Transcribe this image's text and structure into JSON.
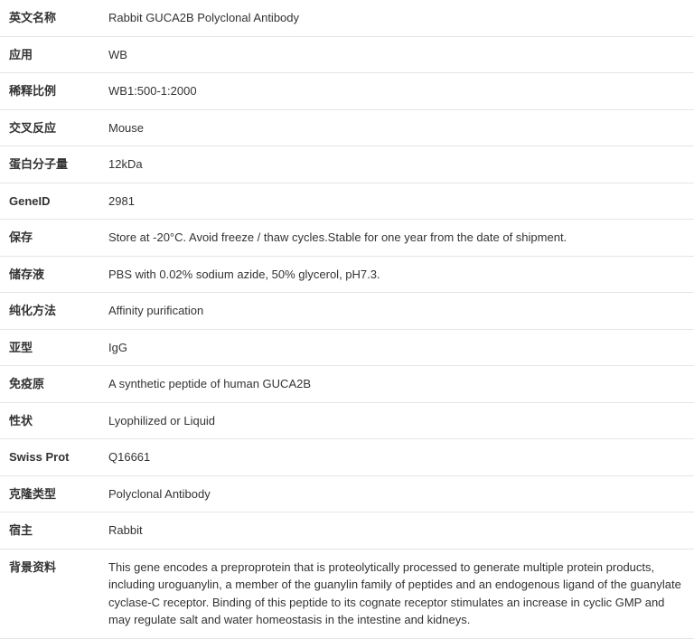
{
  "table": {
    "border_color": "#e5e5e5",
    "text_color": "#333333",
    "label_fontsize": 13,
    "value_fontsize": 13,
    "label_weight": "bold",
    "row_padding_v": 10,
    "label_width": 110,
    "rows": [
      {
        "label": "英文名称",
        "value": "Rabbit GUCA2B Polyclonal Antibody"
      },
      {
        "label": "应用",
        "value": "WB"
      },
      {
        "label": "稀释比例",
        "value": "WB1:500-1:2000"
      },
      {
        "label": "交叉反应",
        "value": "Mouse"
      },
      {
        "label": "蛋白分子量",
        "value": "12kDa"
      },
      {
        "label": "GeneID",
        "value": "2981"
      },
      {
        "label": "保存",
        "value": "Store at -20°C. Avoid freeze / thaw cycles.Stable for one year from the date of shipment."
      },
      {
        "label": "储存液",
        "value": "PBS with 0.02% sodium azide, 50% glycerol, pH7.3."
      },
      {
        "label": "纯化方法",
        "value": "Affinity purification"
      },
      {
        "label": "亚型",
        "value": "IgG"
      },
      {
        "label": "免疫原",
        "value": "A synthetic peptide of human GUCA2B"
      },
      {
        "label": "性状",
        "value": "Lyophilized or Liquid"
      },
      {
        "label": "Swiss Prot",
        "value": "Q16661"
      },
      {
        "label": "克隆类型",
        "value": "Polyclonal Antibody"
      },
      {
        "label": "宿主",
        "value": "Rabbit"
      },
      {
        "label": "背景资料",
        "value": "This gene encodes a preproprotein that is proteolytically processed to generate multiple protein products, including uroguanylin, a member of the guanylin family of peptides and an endogenous ligand of the guanylate cyclase-C receptor. Binding of this peptide to its cognate receptor stimulates an increase in cyclic GMP and may regulate salt and water homeostasis in the intestine and kidneys."
      }
    ]
  }
}
